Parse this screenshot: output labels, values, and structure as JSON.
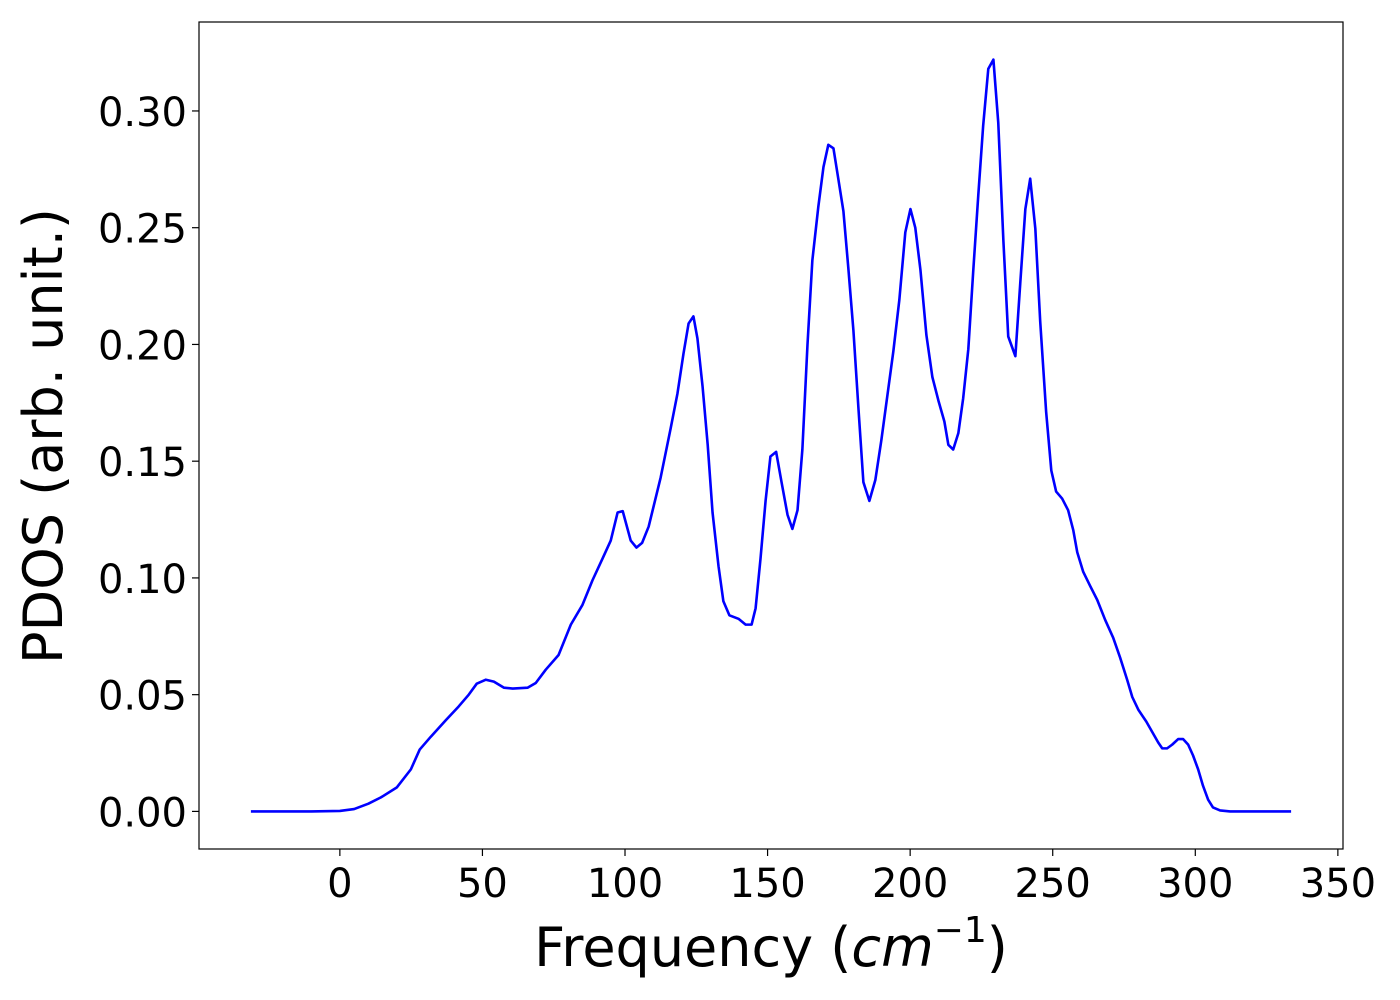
{
  "chart_data": {
    "type": "line",
    "xlabel_parts": [
      "Frequency (",
      "cm",
      "−1",
      ")"
    ],
    "ylabel": "PDOS (arb. unit.)",
    "xlim": [
      -49.4,
      351.8
    ],
    "ylim": [
      -0.0161,
      0.3381
    ],
    "xticks": [
      0,
      50,
      100,
      150,
      200,
      250,
      300,
      350
    ],
    "yticks": [
      {
        "value": 0,
        "label": "0.00"
      },
      0.05,
      {
        "value": 0.1,
        "label": "0.10"
      },
      0.15,
      {
        "value": 0.2,
        "label": "0.20"
      },
      0.25,
      {
        "value": 0.3,
        "label": "0.30"
      }
    ],
    "x": [
      -31.2,
      -10,
      0,
      5,
      10,
      14.4,
      20,
      24.9,
      28,
      31.9,
      37.1,
      41.7,
      45.2,
      48,
      51.2,
      54,
      57.5,
      60.6,
      65.9,
      68.7,
      72.2,
      76.7,
      81,
      85.1,
      88.6,
      92.2,
      95,
      97.4,
      99.2,
      102,
      104,
      106,
      108.3,
      112.5,
      116,
      118.4,
      120.5,
      122.3,
      124,
      125.4,
      127.2,
      129,
      130.7,
      132.8,
      134.5,
      136.6,
      139.8,
      142.3,
      144.4,
      145.8,
      147.5,
      149.3,
      151,
      153,
      154.9,
      157,
      158.7,
      160.5,
      162.2,
      164,
      165.7,
      167.8,
      169.6,
      171.3,
      173.1,
      174.8,
      176.6,
      178.3,
      180.1,
      181.9,
      183.6,
      185.7,
      187.8,
      189.9,
      192,
      194.1,
      196.2,
      198.3,
      200.1,
      201.8,
      203.6,
      205.7,
      207.8,
      209.9,
      212,
      213.4,
      215.1,
      216.9,
      218.6,
      220.4,
      222.1,
      223.9,
      225.6,
      227.4,
      229.2,
      230.9,
      232.7,
      234.4,
      236.9,
      238.6,
      240.4,
      242.1,
      243.9,
      245.6,
      247.7,
      249.5,
      251.2,
      253.3,
      255.4,
      257.2,
      258.6,
      260.7,
      263.1,
      265.6,
      268.4,
      271.2,
      273.6,
      276.1,
      277.9,
      280,
      282.8,
      284.9,
      287,
      288.4,
      290.1,
      291.9,
      294,
      295.7,
      297.5,
      299.2,
      301,
      302.7,
      304.5,
      306.2,
      308.7,
      312.2,
      333.6
    ],
    "series": [
      {
        "color": "#0000ff",
        "values": [
          0,
          0,
          0.0002,
          0.001,
          0.0033,
          0.006,
          0.0103,
          0.018,
          0.0265,
          0.032,
          0.039,
          0.045,
          0.05,
          0.0547,
          0.0564,
          0.0556,
          0.053,
          0.0526,
          0.053,
          0.055,
          0.0607,
          0.067,
          0.08,
          0.0885,
          0.099,
          0.1085,
          0.116,
          0.128,
          0.1286,
          0.116,
          0.113,
          0.115,
          0.122,
          0.143,
          0.164,
          0.179,
          0.196,
          0.209,
          0.212,
          0.2026,
          0.182,
          0.157,
          0.128,
          0.105,
          0.09,
          0.084,
          0.0825,
          0.08,
          0.08,
          0.087,
          0.108,
          0.133,
          0.152,
          0.154,
          0.141,
          0.127,
          0.121,
          0.129,
          0.155,
          0.2,
          0.236,
          0.259,
          0.276,
          0.2855,
          0.284,
          0.271,
          0.257,
          0.233,
          0.206,
          0.172,
          0.141,
          0.133,
          0.142,
          0.159,
          0.178,
          0.197,
          0.219,
          0.248,
          0.258,
          0.25,
          0.232,
          0.204,
          0.186,
          0.176,
          0.167,
          0.157,
          0.155,
          0.162,
          0.177,
          0.198,
          0.231,
          0.264,
          0.2936,
          0.318,
          0.322,
          0.295,
          0.2444,
          0.2034,
          0.195,
          0.226,
          0.258,
          0.271,
          0.2496,
          0.21,
          0.171,
          0.146,
          0.137,
          0.134,
          0.129,
          0.1205,
          0.111,
          0.1026,
          0.0966,
          0.0906,
          0.082,
          0.0744,
          0.066,
          0.0564,
          0.049,
          0.0436,
          0.0385,
          0.034,
          0.0295,
          0.027,
          0.027,
          0.0286,
          0.031,
          0.031,
          0.0286,
          0.024,
          0.018,
          0.011,
          0.005,
          0.0017,
          0.0004,
          0,
          0
        ]
      }
    ]
  }
}
